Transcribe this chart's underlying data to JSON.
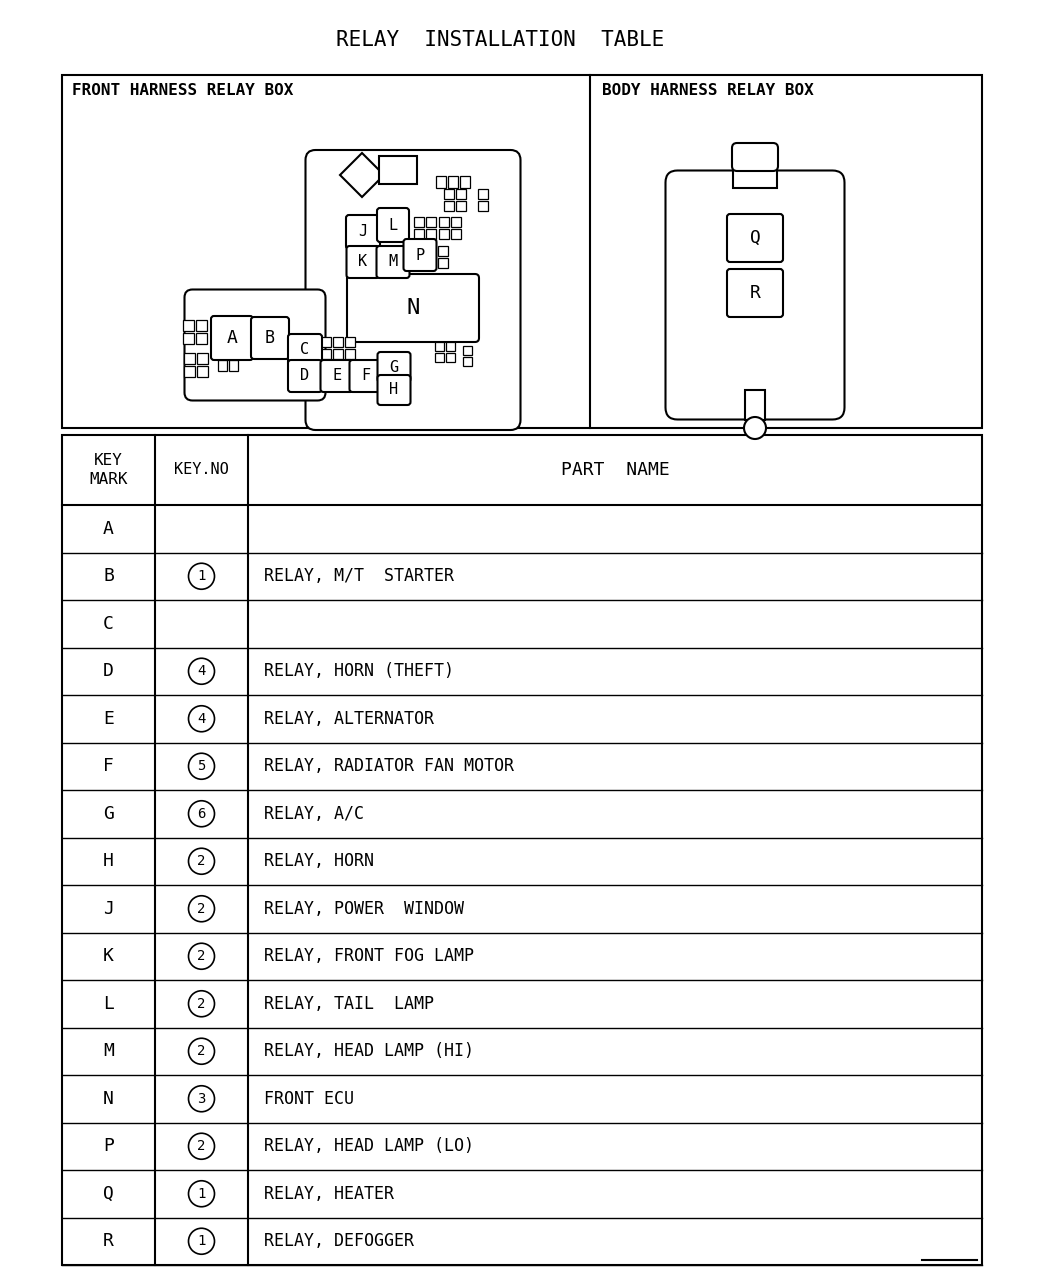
{
  "title": "RELAY  INSTALLATION  TABLE",
  "diagram_section_title_left": "FRONT HARNESS RELAY BOX",
  "diagram_section_title_right": "BODY HARNESS RELAY BOX",
  "table_rows": [
    [
      "A",
      "",
      ""
    ],
    [
      "B",
      "1",
      "RELAY, M/T  STARTER"
    ],
    [
      "C",
      "",
      ""
    ],
    [
      "D",
      "4",
      "RELAY, HORN (THEFT)"
    ],
    [
      "E",
      "4",
      "RELAY, ALTERNATOR"
    ],
    [
      "F",
      "5",
      "RELAY, RADIATOR FAN MOTOR"
    ],
    [
      "G",
      "6",
      "RELAY, A/C"
    ],
    [
      "H",
      "2",
      "RELAY, HORN"
    ],
    [
      "J",
      "2",
      "RELAY, POWER  WINDOW"
    ],
    [
      "K",
      "2",
      "RELAY, FRONT FOG LAMP"
    ],
    [
      "L",
      "2",
      "RELAY, TAIL  LAMP"
    ],
    [
      "M",
      "2",
      "RELAY, HEAD LAMP (HI)"
    ],
    [
      "N",
      "3",
      "FRONT ECU"
    ],
    [
      "P",
      "2",
      "RELAY, HEAD LAMP (LO)"
    ],
    [
      "Q",
      "1",
      "RELAY, HEATER"
    ],
    [
      "R",
      "1",
      "RELAY, DEFOGGER"
    ]
  ],
  "bg_color": "#ffffff",
  "text_color": "#000000",
  "line_color": "#000000"
}
